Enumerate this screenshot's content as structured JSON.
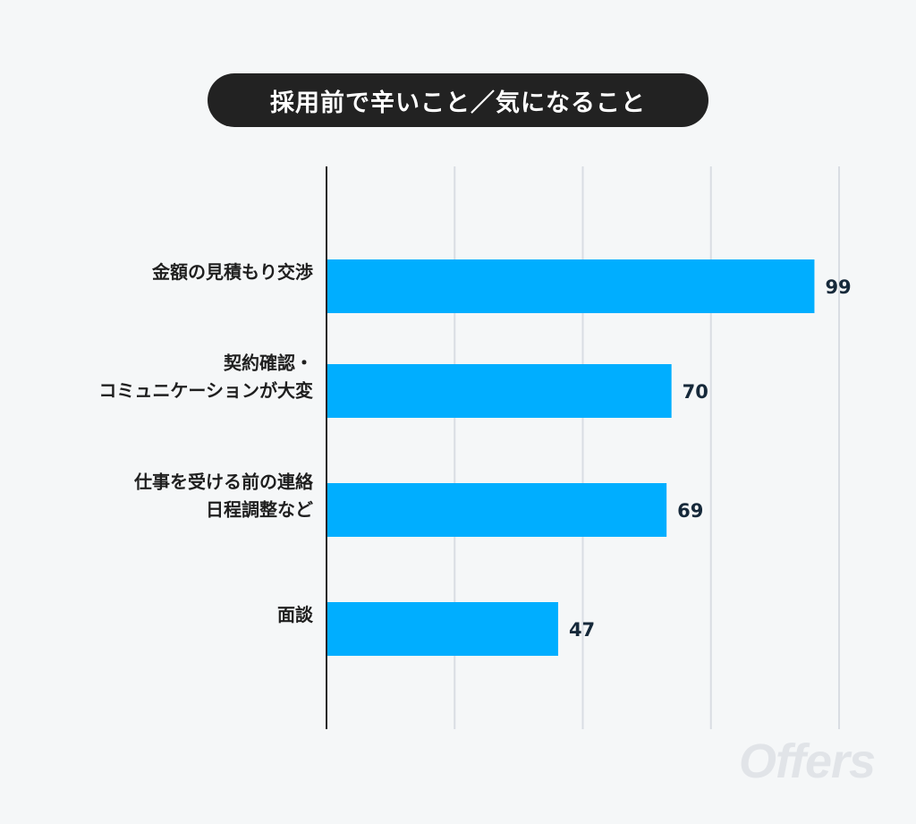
{
  "chart_data": {
    "type": "bar",
    "orientation": "horizontal",
    "title": "採用前で辛いこと／気になること",
    "categories": [
      [
        "金額の見積もり交渉"
      ],
      [
        "契約確認・",
        "コミュニケーションが大変"
      ],
      [
        "仕事を受ける前の連絡",
        "日程調整など"
      ],
      [
        "面談"
      ]
    ],
    "values": [
      99,
      70,
      69,
      47
    ],
    "xlim": [
      0,
      104
    ],
    "xgrid": [
      26,
      52,
      78,
      104
    ],
    "grid": true,
    "legend": "none",
    "bar_color": "#00aeff",
    "grid_color": "#d9dde3",
    "axis_color": "#222222",
    "value_label_color": "#16293a"
  },
  "brand": {
    "watermark": "Offers",
    "watermark_color": "#e1e4e8"
  }
}
